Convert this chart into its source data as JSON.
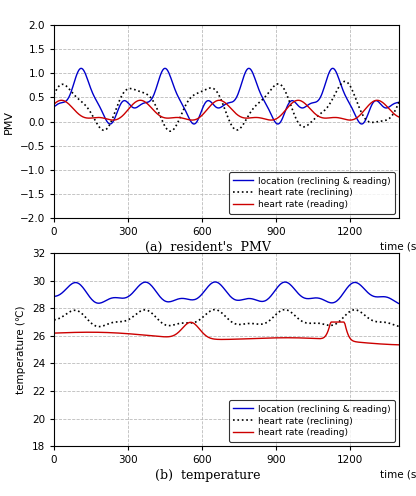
{
  "subplot_a_title": "(a)  resident's  PMV",
  "subplot_b_title": "(b)  temperature",
  "xlabel": "time (sec)",
  "ylabel_a": "PMV",
  "ylabel_b": "temperature (℃)",
  "xlim": [
    0,
    1400
  ],
  "xticks": [
    0,
    300,
    600,
    900,
    1200
  ],
  "ylim_a": [
    -2.0,
    2.0
  ],
  "yticks_a": [
    -2.0,
    -1.5,
    -1.0,
    -0.5,
    0.0,
    0.5,
    1.0,
    1.5,
    2.0
  ],
  "ylim_b": [
    18,
    32
  ],
  "yticks_b": [
    18,
    20,
    22,
    24,
    26,
    28,
    30,
    32
  ],
  "legend_labels": [
    "location (reclining & reading)",
    "heart rate (reclining)",
    "heart rate (reading)"
  ],
  "line_colors": [
    "#0000cc",
    "#000000",
    "#cc0000"
  ],
  "background": "#ffffff",
  "grid_color": "#bbbbbb",
  "grid_style": "--"
}
